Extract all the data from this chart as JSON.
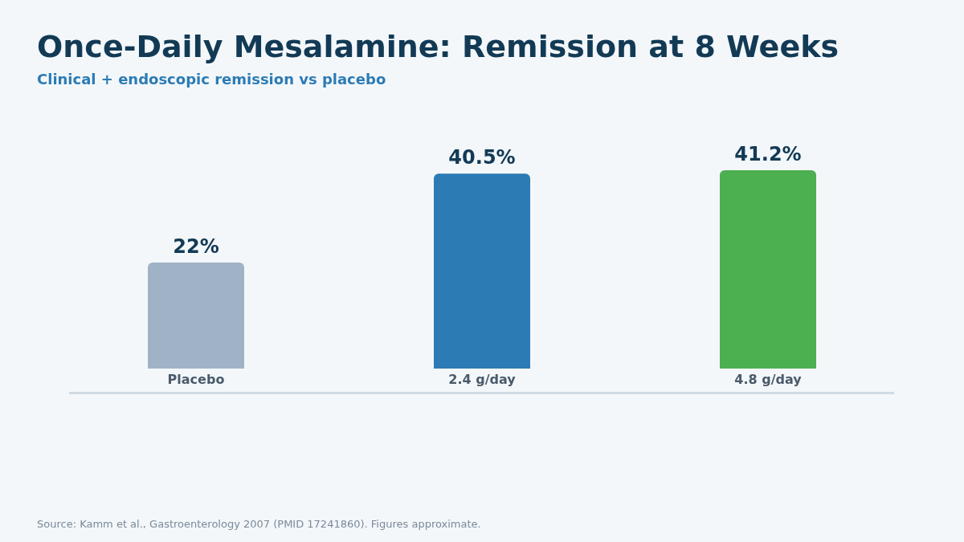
{
  "chart_data": {
    "type": "bar",
    "title": "Once-Daily Mesalamine: Remission at 8 Weeks",
    "subtitle": "Clinical + endoscopic remission vs placebo",
    "categories": [
      "Placebo",
      "2.4 g/day",
      "4.8 g/day"
    ],
    "values": [
      22,
      40.5,
      41.2
    ],
    "colors": [
      "#a0b3c6",
      "#2c7bb4",
      "#4caf50"
    ],
    "value_labels": [
      "22%",
      "40.5%",
      "41.2%"
    ],
    "annotations": [
      "Source: Kamm et al., Gastroenterology 2007 (PMID 17241860). Figures approximate."
    ]
  }
}
